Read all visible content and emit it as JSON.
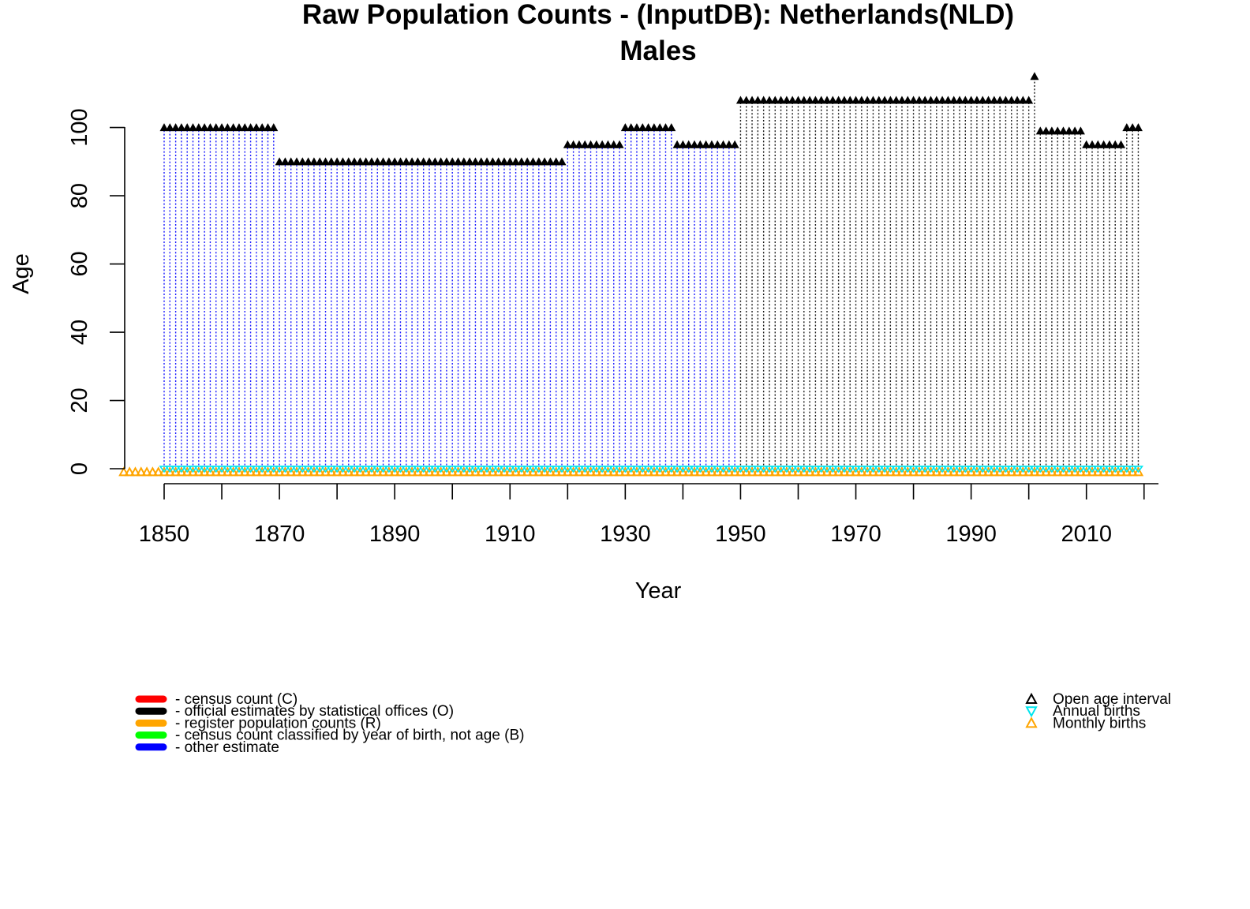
{
  "chart_data": {
    "type": "scatter",
    "title": "Raw Population Counts - (InputDB): Netherlands(NLD)",
    "subtitle": "Males",
    "xlabel": "Year",
    "ylabel": "Age",
    "xlim": [
      1843,
      2021
    ],
    "ylim": [
      -3,
      116
    ],
    "x_ticks": [
      1850,
      1860,
      1870,
      1880,
      1890,
      1900,
      1910,
      1920,
      1930,
      1940,
      1950,
      1960,
      1970,
      1980,
      1990,
      2000,
      2010,
      2020
    ],
    "x_tick_labels": [
      "1850",
      "1870",
      "1890",
      "1910",
      "1930",
      "1950",
      "1970",
      "1990",
      "2010"
    ],
    "x_tick_labels_at": [
      1850,
      1870,
      1890,
      1910,
      1930,
      1950,
      1970,
      1990,
      2010
    ],
    "y_ticks": [
      0,
      20,
      40,
      60,
      80,
      100
    ],
    "y_tick_labels": [
      "0",
      "20",
      "40",
      "60",
      "80",
      "100"
    ],
    "grid": false,
    "open_age_interval": [
      {
        "from": 1850,
        "to": 1869,
        "age": 100,
        "color": "blue"
      },
      {
        "from": 1870,
        "to": 1919,
        "age": 90,
        "color": "blue"
      },
      {
        "from": 1920,
        "to": 1929,
        "age": 95,
        "color": "blue"
      },
      {
        "from": 1930,
        "to": 1938,
        "age": 100,
        "color": "blue"
      },
      {
        "from": 1939,
        "to": 1949,
        "age": 95,
        "color": "blue"
      },
      {
        "from": 1950,
        "to": 2000,
        "age": 108,
        "color": "black"
      },
      {
        "from": 2001,
        "to": 2001,
        "age": 115,
        "color": "black"
      },
      {
        "from": 2002,
        "to": 2009,
        "age": 99,
        "color": "black"
      },
      {
        "from": 2010,
        "to": 2016,
        "age": 95,
        "color": "black"
      },
      {
        "from": 2017,
        "to": 2019,
        "age": 100,
        "color": "black"
      }
    ],
    "annual_births": {
      "from": 1850,
      "to": 2019,
      "age": 0
    },
    "monthly_births": {
      "from": 1843,
      "to": 2019,
      "age": -1
    },
    "legend_left": [
      {
        "label": "- census count (C)",
        "color": "#ff0000"
      },
      {
        "label": "- official estimates by statistical offices (O)",
        "color": "#000000"
      },
      {
        "label": "- register population counts (R)",
        "color": "#ffa500"
      },
      {
        "label": "- census count classified by year of birth, not age (B)",
        "color": "#00ff00"
      },
      {
        "label": "- other estimate",
        "color": "#0000ff"
      }
    ],
    "legend_right": [
      {
        "label": "Open age interval",
        "color": "#000000",
        "symbol": "triangle-up"
      },
      {
        "label": "Annual births",
        "color": "#00e5ee",
        "symbol": "triangle-down"
      },
      {
        "label": "Monthly births",
        "color": "#ffa500",
        "symbol": "triangle-up"
      }
    ],
    "legend_placement": "bottom",
    "colors": {
      "other_estimate": "#0000ff",
      "official_estimates": "#000000",
      "annual_births": "#00e5ee",
      "monthly_births": "#ffa500"
    }
  }
}
